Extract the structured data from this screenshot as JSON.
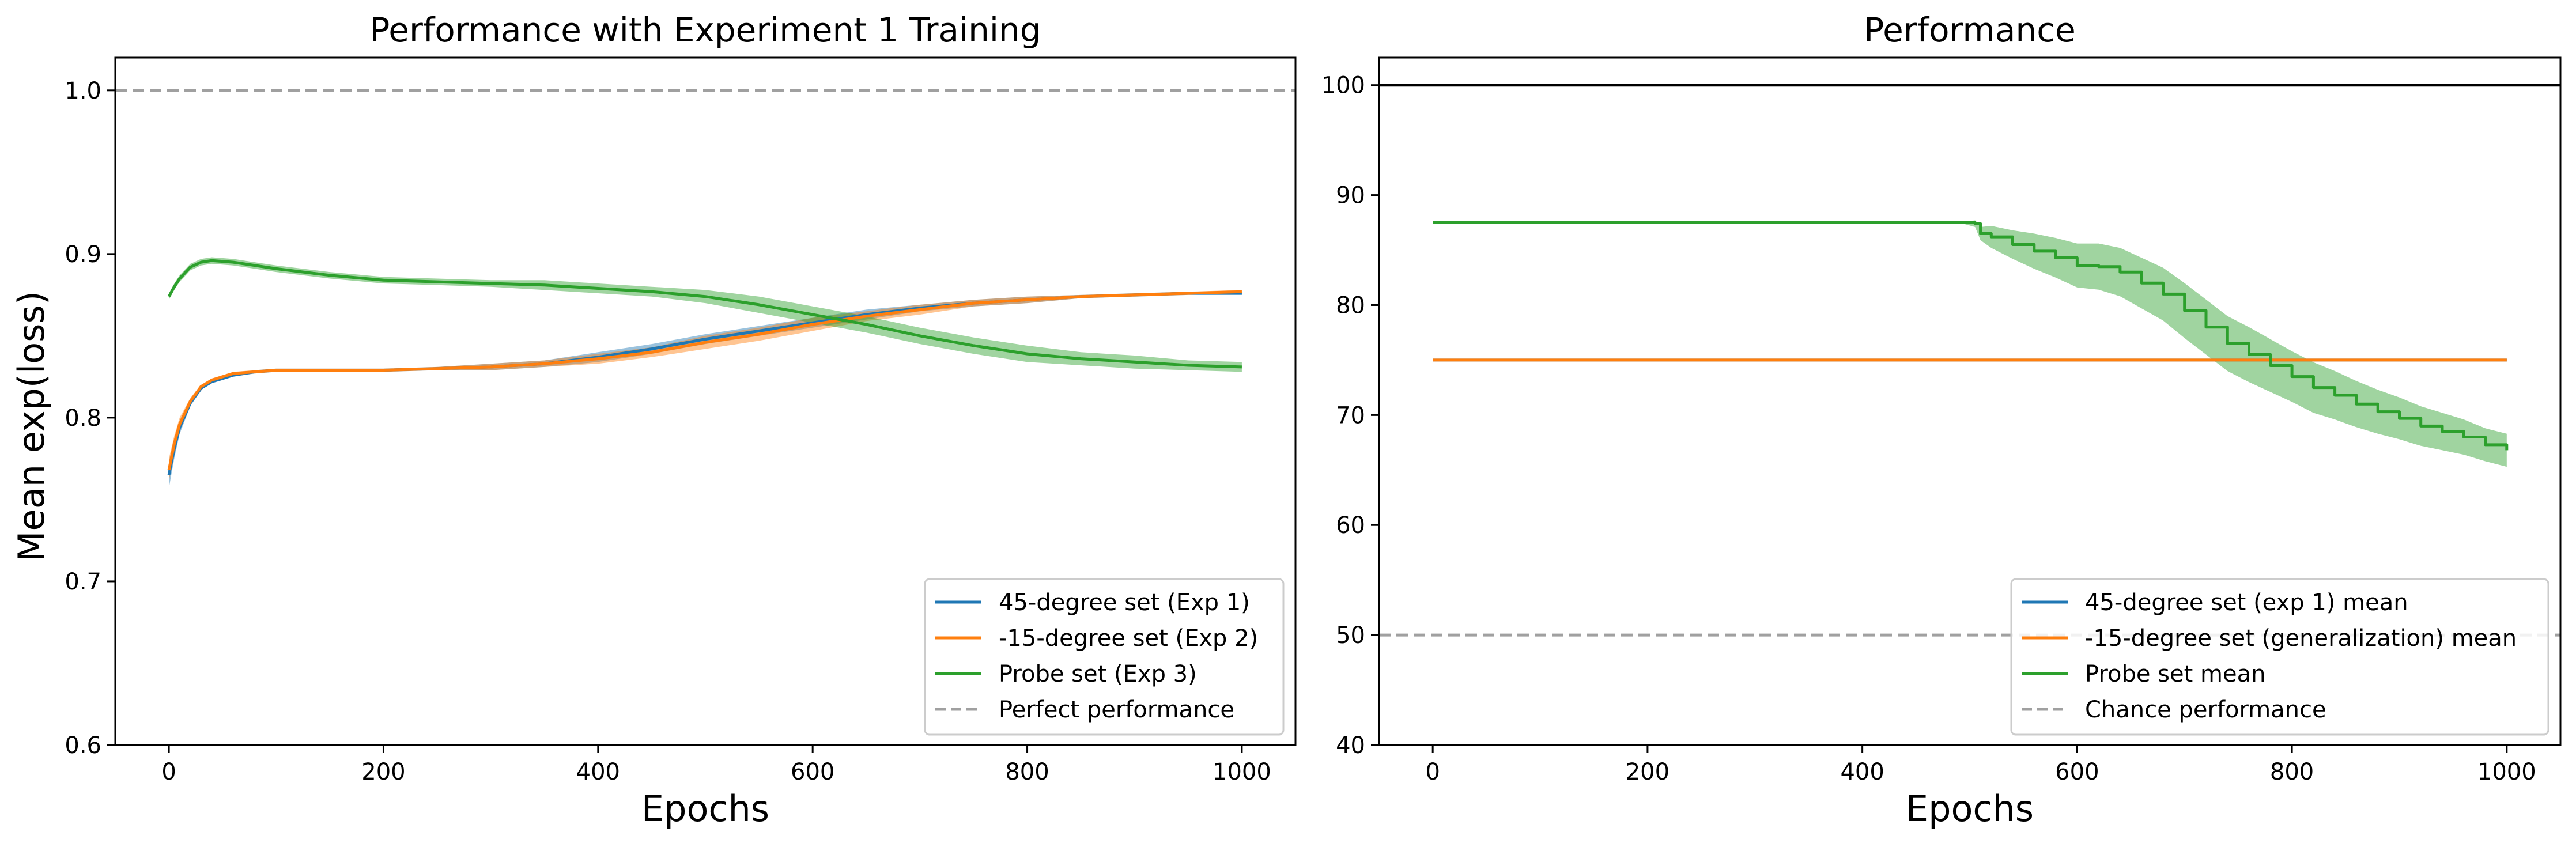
{
  "chart_data": [
    {
      "type": "line",
      "title": "Performance with Experiment 1 Training",
      "xlabel": "Epochs",
      "ylabel": "Mean exp(loss)",
      "xlim": [
        -50,
        1050
      ],
      "ylim": [
        0.6,
        1.02
      ],
      "xticks": [
        "0",
        "200",
        "400",
        "600",
        "800",
        "1000"
      ],
      "xtick_values": [
        0,
        200,
        400,
        600,
        800,
        1000
      ],
      "yticks": [
        "0.6",
        "0.7",
        "0.8",
        "0.9",
        "1.0"
      ],
      "ytick_values": [
        0.6,
        0.7,
        0.8,
        0.9,
        1.0
      ],
      "grid": false,
      "legend_position": "lower-right",
      "series": [
        {
          "name": "45-degree set (Exp 1)",
          "color": "#1f77b4",
          "band": true,
          "points": [
            [
              0,
              0.765
            ],
            [
              5,
              0.781
            ],
            [
              10,
              0.794
            ],
            [
              20,
              0.809
            ],
            [
              30,
              0.818
            ],
            [
              40,
              0.822
            ],
            [
              60,
              0.826
            ],
            [
              80,
              0.828
            ],
            [
              100,
              0.829
            ],
            [
              150,
              0.829
            ],
            [
              200,
              0.829
            ],
            [
              250,
              0.83
            ],
            [
              300,
              0.831
            ],
            [
              350,
              0.833
            ],
            [
              400,
              0.837
            ],
            [
              450,
              0.842
            ],
            [
              500,
              0.848
            ],
            [
              550,
              0.853
            ],
            [
              600,
              0.858
            ],
            [
              650,
              0.863
            ],
            [
              700,
              0.867
            ],
            [
              750,
              0.87
            ],
            [
              800,
              0.872
            ],
            [
              850,
              0.874
            ],
            [
              900,
              0.875
            ],
            [
              950,
              0.876
            ],
            [
              1000,
              0.876
            ]
          ],
          "band_width": [
            0.008,
            0.006,
            0.004,
            0.002,
            0.001,
            0.001,
            0.001,
            0.001,
            0.001,
            0.001,
            0.001,
            0.001,
            0.002,
            0.002,
            0.003,
            0.003,
            0.003,
            0.003,
            0.003,
            0.003,
            0.002,
            0.002,
            0.002,
            0.001,
            0.001,
            0.001,
            0.001
          ]
        },
        {
          "name": "-15-degree set (Exp 2)",
          "color": "#ff7f0e",
          "band": true,
          "points": [
            [
              0,
              0.768
            ],
            [
              5,
              0.784
            ],
            [
              10,
              0.796
            ],
            [
              20,
              0.81
            ],
            [
              30,
              0.819
            ],
            [
              40,
              0.823
            ],
            [
              60,
              0.827
            ],
            [
              80,
              0.828
            ],
            [
              100,
              0.829
            ],
            [
              150,
              0.829
            ],
            [
              200,
              0.829
            ],
            [
              250,
              0.83
            ],
            [
              300,
              0.831
            ],
            [
              350,
              0.833
            ],
            [
              400,
              0.836
            ],
            [
              450,
              0.84
            ],
            [
              500,
              0.846
            ],
            [
              550,
              0.851
            ],
            [
              600,
              0.857
            ],
            [
              650,
              0.862
            ],
            [
              700,
              0.866
            ],
            [
              750,
              0.87
            ],
            [
              800,
              0.872
            ],
            [
              850,
              0.874
            ],
            [
              900,
              0.875
            ],
            [
              950,
              0.876
            ],
            [
              1000,
              0.877
            ]
          ],
          "band_width": [
            0.007,
            0.005,
            0.004,
            0.002,
            0.001,
            0.001,
            0.001,
            0.001,
            0.001,
            0.001,
            0.001,
            0.001,
            0.002,
            0.002,
            0.003,
            0.003,
            0.004,
            0.004,
            0.004,
            0.003,
            0.003,
            0.002,
            0.002,
            0.001,
            0.001,
            0.001,
            0.001
          ]
        },
        {
          "name": "Probe set (Exp 3)",
          "color": "#2ca02c",
          "band": true,
          "points": [
            [
              0,
              0.874
            ],
            [
              5,
              0.88
            ],
            [
              10,
              0.885
            ],
            [
              20,
              0.892
            ],
            [
              30,
              0.895
            ],
            [
              40,
              0.896
            ],
            [
              60,
              0.895
            ],
            [
              80,
              0.893
            ],
            [
              100,
              0.891
            ],
            [
              150,
              0.887
            ],
            [
              200,
              0.884
            ],
            [
              250,
              0.883
            ],
            [
              300,
              0.882
            ],
            [
              350,
              0.881
            ],
            [
              400,
              0.879
            ],
            [
              450,
              0.877
            ],
            [
              500,
              0.874
            ],
            [
              550,
              0.869
            ],
            [
              600,
              0.863
            ],
            [
              650,
              0.857
            ],
            [
              700,
              0.85
            ],
            [
              750,
              0.844
            ],
            [
              800,
              0.839
            ],
            [
              850,
              0.836
            ],
            [
              900,
              0.834
            ],
            [
              950,
              0.832
            ],
            [
              1000,
              0.831
            ]
          ],
          "band_width": [
            0.002,
            0.002,
            0.002,
            0.002,
            0.002,
            0.002,
            0.002,
            0.002,
            0.002,
            0.002,
            0.002,
            0.002,
            0.002,
            0.003,
            0.003,
            0.003,
            0.004,
            0.005,
            0.005,
            0.005,
            0.005,
            0.005,
            0.005,
            0.004,
            0.004,
            0.003,
            0.003
          ]
        },
        {
          "name": "Perfect performance",
          "color": "#a0a0a0",
          "dashed": true,
          "hline": 1.0
        }
      ]
    },
    {
      "type": "line",
      "title": "Performance",
      "xlabel": "Epochs",
      "ylabel": "",
      "xlim": [
        -50,
        1050
      ],
      "ylim": [
        40,
        102.5
      ],
      "xticks": [
        "0",
        "200",
        "400",
        "600",
        "800",
        "1000"
      ],
      "xtick_values": [
        0,
        200,
        400,
        600,
        800,
        1000
      ],
      "yticks": [
        "40",
        "50",
        "60",
        "70",
        "80",
        "90",
        "100"
      ],
      "ytick_values": [
        40,
        50,
        60,
        70,
        80,
        90,
        100
      ],
      "grid": false,
      "legend_position": "lower-right",
      "reference_line": {
        "y": 100,
        "color": "#000000"
      },
      "series": [
        {
          "name": "45-degree set (exp 1) mean",
          "color": "#1f77b4",
          "points": [
            [
              0,
              75
            ],
            [
              1000,
              75
            ]
          ]
        },
        {
          "name": "-15-degree set (generalization) mean",
          "color": "#ff7f0e",
          "points": [
            [
              0,
              75
            ],
            [
              1000,
              75
            ]
          ]
        },
        {
          "name": "Probe set mean",
          "color": "#2ca02c",
          "band": true,
          "points": [
            [
              0,
              87.5
            ],
            [
              490,
              87.5
            ],
            [
              505,
              87.4
            ],
            [
              510,
              86.5
            ],
            [
              520,
              86.2
            ],
            [
              540,
              85.5
            ],
            [
              560,
              84.9
            ],
            [
              580,
              84.3
            ],
            [
              600,
              83.6
            ],
            [
              620,
              83.5
            ],
            [
              640,
              83.0
            ],
            [
              660,
              82.0
            ],
            [
              680,
              81.0
            ],
            [
              700,
              79.5
            ],
            [
              720,
              78.0
            ],
            [
              740,
              76.5
            ],
            [
              760,
              75.5
            ],
            [
              780,
              74.5
            ],
            [
              800,
              73.5
            ],
            [
              820,
              72.5
            ],
            [
              840,
              71.8
            ],
            [
              860,
              71.0
            ],
            [
              880,
              70.3
            ],
            [
              900,
              69.7
            ],
            [
              920,
              69.0
            ],
            [
              940,
              68.5
            ],
            [
              960,
              68.0
            ],
            [
              980,
              67.3
            ],
            [
              1000,
              66.8
            ]
          ],
          "band_width": [
            0,
            0,
            0.3,
            0.6,
            1.0,
            1.3,
            1.6,
            1.8,
            2.0,
            2.1,
            2.2,
            2.3,
            2.4,
            2.5,
            2.5,
            2.5,
            2.5,
            2.4,
            2.3,
            2.3,
            2.2,
            2.1,
            2.0,
            1.9,
            1.8,
            1.7,
            1.6,
            1.5,
            1.5
          ]
        },
        {
          "name": "Chance performance",
          "color": "#a0a0a0",
          "dashed": true,
          "hline": 50
        }
      ]
    }
  ]
}
